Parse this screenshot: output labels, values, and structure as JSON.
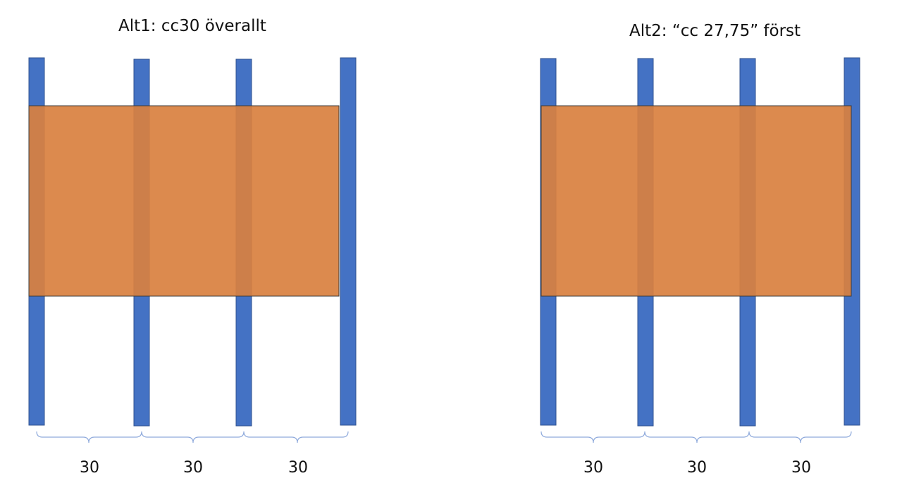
{
  "diagrams": [
    {
      "title": "Alt1: cc30 överallt",
      "spacing_labels": [
        "30",
        "30",
        "30"
      ]
    },
    {
      "title": "Alt2: “cc 27,75” först",
      "spacing_labels": [
        "30",
        "30",
        "30"
      ]
    }
  ],
  "colors": {
    "stud_fill": "#4472c4",
    "stud_stroke": "#2f528f",
    "board_fill": "#d9803f",
    "board_stroke": "#3b3b3b",
    "brace_stroke": "#8faadc",
    "text": "#111111"
  }
}
